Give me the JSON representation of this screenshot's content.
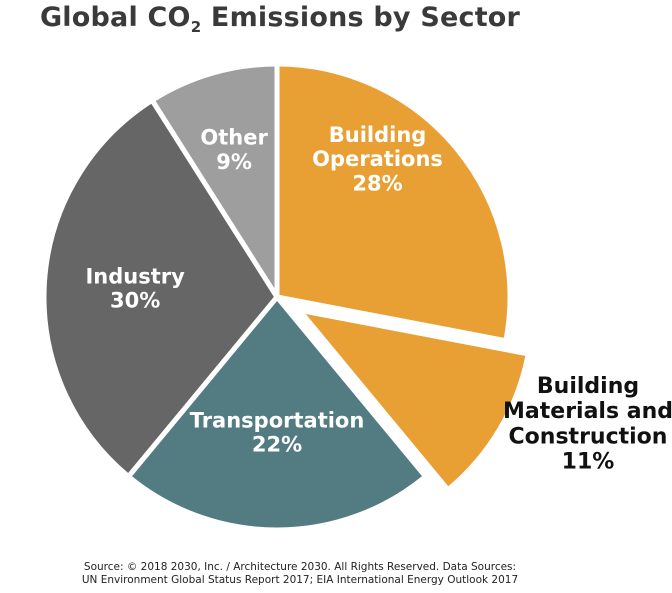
{
  "chart_data": {
    "type": "pie",
    "title": {
      "prefix": "Global CO",
      "subscript": "2",
      "suffix": " Emissions by Sector"
    },
    "slices": [
      {
        "lines": [
          "Building",
          "Operations"
        ],
        "pct_label": "28%",
        "value": 28,
        "color": "#E8A034",
        "exploded": false
      },
      {
        "lines": [
          "Building",
          "Materials and",
          "Construction"
        ],
        "pct_label": "11%",
        "value": 11,
        "color": "#E8A034",
        "exploded": true
      },
      {
        "lines": [
          "Transportation"
        ],
        "pct_label": "22%",
        "value": 22,
        "color": "#527C82",
        "exploded": false
      },
      {
        "lines": [
          "Industry"
        ],
        "pct_label": "30%",
        "value": 30,
        "color": "#666666",
        "exploded": false
      },
      {
        "lines": [
          "Other"
        ],
        "pct_label": "9%",
        "value": 9,
        "color": "#9E9E9E",
        "exploded": false
      }
    ]
  },
  "source": {
    "line1": "Source: © 2018 2030, Inc. / Architecture 2030. All Rights Reserved. Data Sources:",
    "line2": "UN Environment Global Status Report 2017; EIA International Energy Outlook 2017"
  }
}
